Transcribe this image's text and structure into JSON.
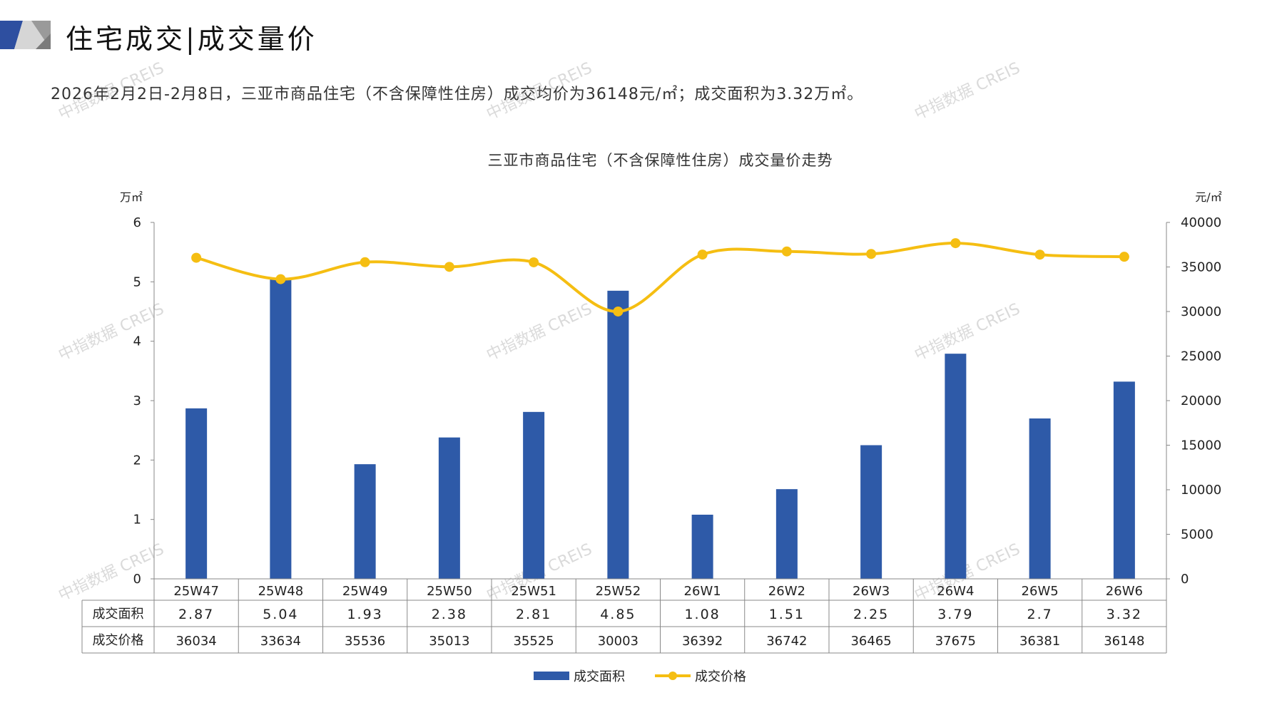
{
  "header": {
    "title": "住宅成交|成交量价",
    "summary": "2026年2月2日-2月8日，三亚市商品住宅（不含保障性住房）成交均价为36148元/㎡；成交面积为3.32万㎡。"
  },
  "watermark": "中指数据 CREIS",
  "colors": {
    "bar": "#2e5aa8",
    "line": "#f5be12",
    "logo_blue": "#2e4fa0",
    "logo_gray": "#9a9a9a"
  },
  "chart_data": {
    "type": "bar+line",
    "title": "三亚市商品住宅（不含保障性住房）成交量价走势",
    "ylabel_left": "万㎡",
    "ylabel_right": "元/㎡",
    "ylim_left": [
      0,
      6
    ],
    "yticks_left": [
      0,
      1,
      2,
      3,
      4,
      5,
      6
    ],
    "ylim_right": [
      0,
      40000
    ],
    "yticks_right": [
      0,
      5000,
      10000,
      15000,
      20000,
      25000,
      30000,
      35000,
      40000
    ],
    "categories": [
      "25W47",
      "25W48",
      "25W49",
      "25W50",
      "25W51",
      "25W52",
      "26W1",
      "26W2",
      "26W3",
      "26W4",
      "26W5",
      "26W6"
    ],
    "series": [
      {
        "name": "成交面积",
        "type": "bar",
        "axis": "left",
        "values": [
          2.87,
          5.04,
          1.93,
          2.38,
          2.81,
          4.85,
          1.08,
          1.51,
          2.25,
          3.79,
          2.7,
          3.32
        ],
        "labels": [
          "2.87",
          "5.04",
          "1.93",
          "2.38",
          "2.81",
          "4.85",
          "1.08",
          "1.51",
          "2.25",
          "3.79",
          "2.7",
          "3.32"
        ]
      },
      {
        "name": "成交价格",
        "type": "line",
        "axis": "right",
        "values": [
          36034,
          33634,
          35536,
          35013,
          35525,
          30003,
          36392,
          36742,
          36465,
          37675,
          36381,
          36148
        ]
      }
    ],
    "legend": "bottom",
    "grid": false
  }
}
